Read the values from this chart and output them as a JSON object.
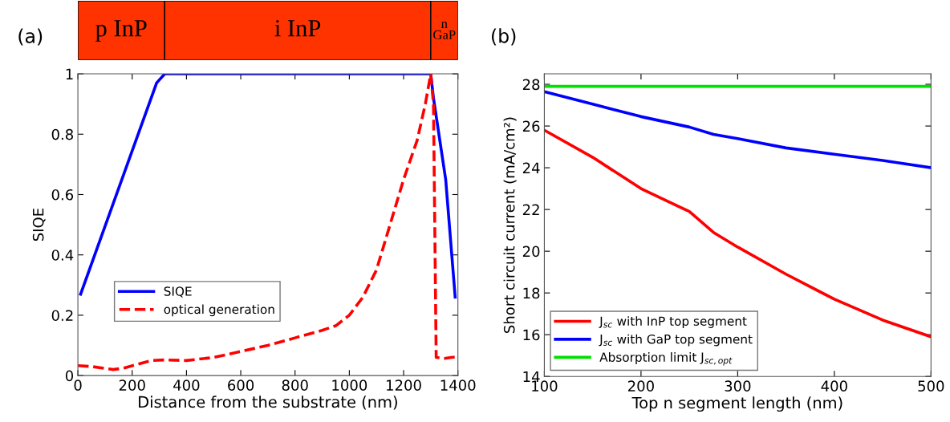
{
  "chart_data": [
    {
      "type": "bar",
      "orientation": "horizontal",
      "stacked": true,
      "categories": [
        null
      ],
      "xlim": [
        0,
        1400
      ],
      "tick_labels": false,
      "series": [
        {
          "name": "p InP",
          "color": "#ff3300",
          "values": [
            320
          ]
        },
        {
          "name": "i InP",
          "color": "#ff3300",
          "values": [
            980
          ]
        },
        {
          "name": "n\nGaP",
          "color": "#ff3300",
          "values": [
            100
          ]
        }
      ]
    },
    {
      "type": "line",
      "xlabel": "Distance from the substrate (nm)",
      "ylabel": "SIQE",
      "xlim": [
        0,
        1400
      ],
      "ylim": [
        0,
        1
      ],
      "xticks": [
        0,
        200,
        400,
        600,
        800,
        1000,
        1200,
        1400
      ],
      "yticks": [
        0,
        0.2,
        0.4,
        0.6,
        0.8,
        1
      ],
      "grid": false,
      "legend": "bottom left",
      "annotations": [
        "(a)"
      ],
      "series": [
        {
          "name": "SIQE",
          "color": "#0000ff",
          "line_style": "solid",
          "x": [
            10,
            290,
            320,
            1300,
            1310,
            1355,
            1390
          ],
          "values": [
            0.27,
            0.97,
            1.0,
            1.0,
            0.92,
            0.65,
            0.26
          ]
        },
        {
          "name": "optical generation",
          "color": "#ff0000",
          "line_style": "dashed",
          "x": [
            0,
            50,
            130,
            170,
            270,
            320,
            400,
            500,
            600,
            700,
            800,
            900,
            950,
            1000,
            1050,
            1100,
            1150,
            1200,
            1250,
            1280,
            1300,
            1310,
            1320,
            1350,
            1400
          ],
          "values": [
            0.033,
            0.03,
            0.02,
            0.025,
            0.05,
            0.052,
            0.05,
            0.06,
            0.08,
            0.1,
            0.125,
            0.15,
            0.165,
            0.2,
            0.26,
            0.35,
            0.5,
            0.65,
            0.78,
            0.9,
            1.0,
            0.9,
            0.06,
            0.057,
            0.063
          ]
        }
      ]
    },
    {
      "type": "line",
      "xlabel": "Top n segment length (nm)",
      "ylabel": "Short circuit current (mA/cm²)",
      "xlim": [
        100,
        500
      ],
      "ylim": [
        14,
        28.5
      ],
      "xticks": [
        100,
        200,
        300,
        400,
        500
      ],
      "yticks": [
        14,
        16,
        18,
        20,
        22,
        24,
        26,
        28
      ],
      "grid": false,
      "legend": "bottom left",
      "annotations": [
        "(b)"
      ],
      "x": [
        100,
        150,
        200,
        250,
        275,
        300,
        350,
        400,
        450,
        500
      ],
      "series": [
        {
          "name": "J$_{sc}$ with InP top segment",
          "color": "#ff0000",
          "line_style": "solid",
          "values": [
            25.8,
            24.5,
            23.0,
            21.9,
            20.9,
            20.2,
            18.9,
            17.7,
            16.7,
            15.9
          ]
        },
        {
          "name": "J$_{sc}$ with GaP top segment",
          "color": "#0000ff",
          "line_style": "solid",
          "values": [
            27.65,
            27.05,
            26.45,
            25.95,
            25.6,
            25.4,
            24.95,
            24.65,
            24.35,
            24.0
          ]
        },
        {
          "name": "Absorption limit J$_{sc,opt}$",
          "color": "#00e000",
          "line_style": "solid",
          "values": [
            27.9,
            27.9,
            27.9,
            27.9,
            27.9,
            27.9,
            27.9,
            27.9,
            27.9,
            27.9
          ]
        }
      ]
    }
  ]
}
